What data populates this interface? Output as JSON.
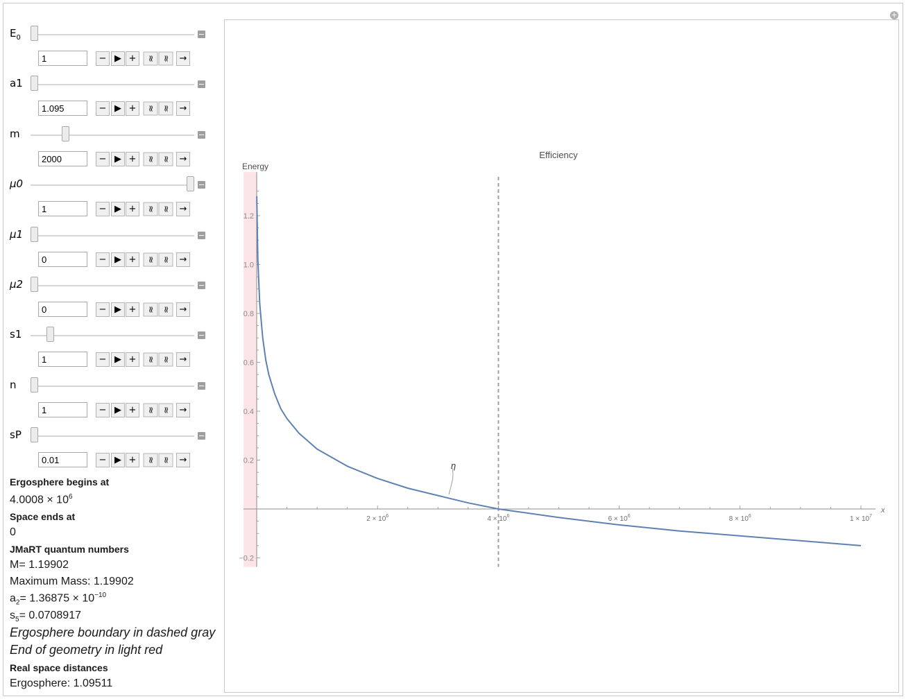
{
  "controls": [
    {
      "name": "E",
      "sub": "0",
      "italic": false,
      "value": "1",
      "thumb_fraction": 0.0
    },
    {
      "name": "a1",
      "sub": "",
      "italic": false,
      "value": "1.095",
      "thumb_fraction": 0.0
    },
    {
      "name": "m",
      "sub": "",
      "italic": false,
      "value": "2000",
      "thumb_fraction": 0.2
    },
    {
      "name": "μ0",
      "sub": "",
      "italic": true,
      "value": "1",
      "thumb_fraction": 1.0
    },
    {
      "name": "μ1",
      "sub": "",
      "italic": true,
      "value": "0",
      "thumb_fraction": 0.0
    },
    {
      "name": "μ2",
      "sub": "",
      "italic": true,
      "value": "0",
      "thumb_fraction": 0.0
    },
    {
      "name": "s1",
      "sub": "",
      "italic": false,
      "value": "1",
      "thumb_fraction": 0.1
    },
    {
      "name": "n",
      "sub": "",
      "italic": false,
      "value": "1",
      "thumb_fraction": 0.0
    },
    {
      "name": "sP",
      "sub": "",
      "italic": false,
      "value": "0.01",
      "thumb_fraction": 0.0
    }
  ],
  "stepper_icons": [
    "minus-icon",
    "play-icon",
    "plus-icon",
    "faster-icon",
    "slower-icon",
    "direction-arrow-icon"
  ],
  "stepper_glyphs": [
    "−",
    "▶",
    "+",
    "≈",
    "≈",
    "→"
  ],
  "corner_glyph": "+",
  "info": {
    "ergo_heading": "Ergosphere begins at",
    "ergo_value_mantissa": "4.0008",
    "ergo_value_times": " × 10",
    "ergo_value_exp": "6",
    "space_heading": "Space ends at",
    "space_value": "0",
    "jmart_heading": "JMaRT quantum numbers",
    "M_label": "M=",
    "M_value": "1.19902",
    "maxmass_label": "Maximum Mass:",
    "maxmass_value": "1.19902",
    "a2_label": "a",
    "a2_sub": "2",
    "a2_eq": "=",
    "a2_mantissa": "1.36875",
    "a2_times": " × 10",
    "a2_exp": "−10",
    "s5_label": "s",
    "s5_sub": "5",
    "s5_eq": "=",
    "s5_value": "0.0708917",
    "note1": "Ergosphere boundary in dashed gray",
    "note2": "End of geometry in light red",
    "real_heading": "Real space distances",
    "ergo_dist_label": "Ergosphere:",
    "ergo_dist_value": "1.09511"
  },
  "colors": {
    "curve": "#5e81b5",
    "ergosphere_line": "#a0a0a0",
    "geometry_end_band": "#fde4e6",
    "axis": "#8c8c8c"
  },
  "chart_data": {
    "type": "line",
    "title": "Efficiency",
    "ylabel": "Energy",
    "xlabel": "x",
    "series_label": "η",
    "x_range": [
      0,
      10000000
    ],
    "y_range": [
      -0.22,
      1.35
    ],
    "x_ticks": [
      2000000,
      4000000,
      6000000,
      8000000,
      10000000
    ],
    "x_tick_labels": [
      {
        "mantissa": "2",
        "times": " × 10",
        "exp": "6"
      },
      {
        "mantissa": "4",
        "times": " × 10",
        "exp": "6"
      },
      {
        "mantissa": "6",
        "times": " × 10",
        "exp": "6"
      },
      {
        "mantissa": "8",
        "times": " × 10",
        "exp": "6"
      },
      {
        "mantissa": "1",
        "times": " × 10",
        "exp": "7"
      }
    ],
    "y_ticks": [
      -0.2,
      0.2,
      0.4,
      0.6,
      0.8,
      1.0,
      1.2
    ],
    "y_tick_labels": [
      "−0.2",
      "0.2",
      "0.4",
      "0.6",
      "0.8",
      "1.0",
      "1.2"
    ],
    "ergosphere_x": 4000800,
    "series": [
      {
        "x": [
          1000,
          20000,
          50000,
          100000,
          150000,
          200000,
          300000,
          400000,
          500000,
          700000,
          1000000,
          1500000,
          2000000,
          2500000,
          3000000,
          3500000,
          4000800,
          5000000,
          6000000,
          7000000,
          8000000,
          9000000,
          10000000
        ],
        "y": [
          1.28,
          1.02,
          0.84,
          0.7,
          0.61,
          0.55,
          0.47,
          0.41,
          0.37,
          0.31,
          0.245,
          0.175,
          0.125,
          0.085,
          0.055,
          0.025,
          0.0,
          -0.035,
          -0.065,
          -0.09,
          -0.11,
          -0.13,
          -0.15
        ]
      }
    ]
  }
}
